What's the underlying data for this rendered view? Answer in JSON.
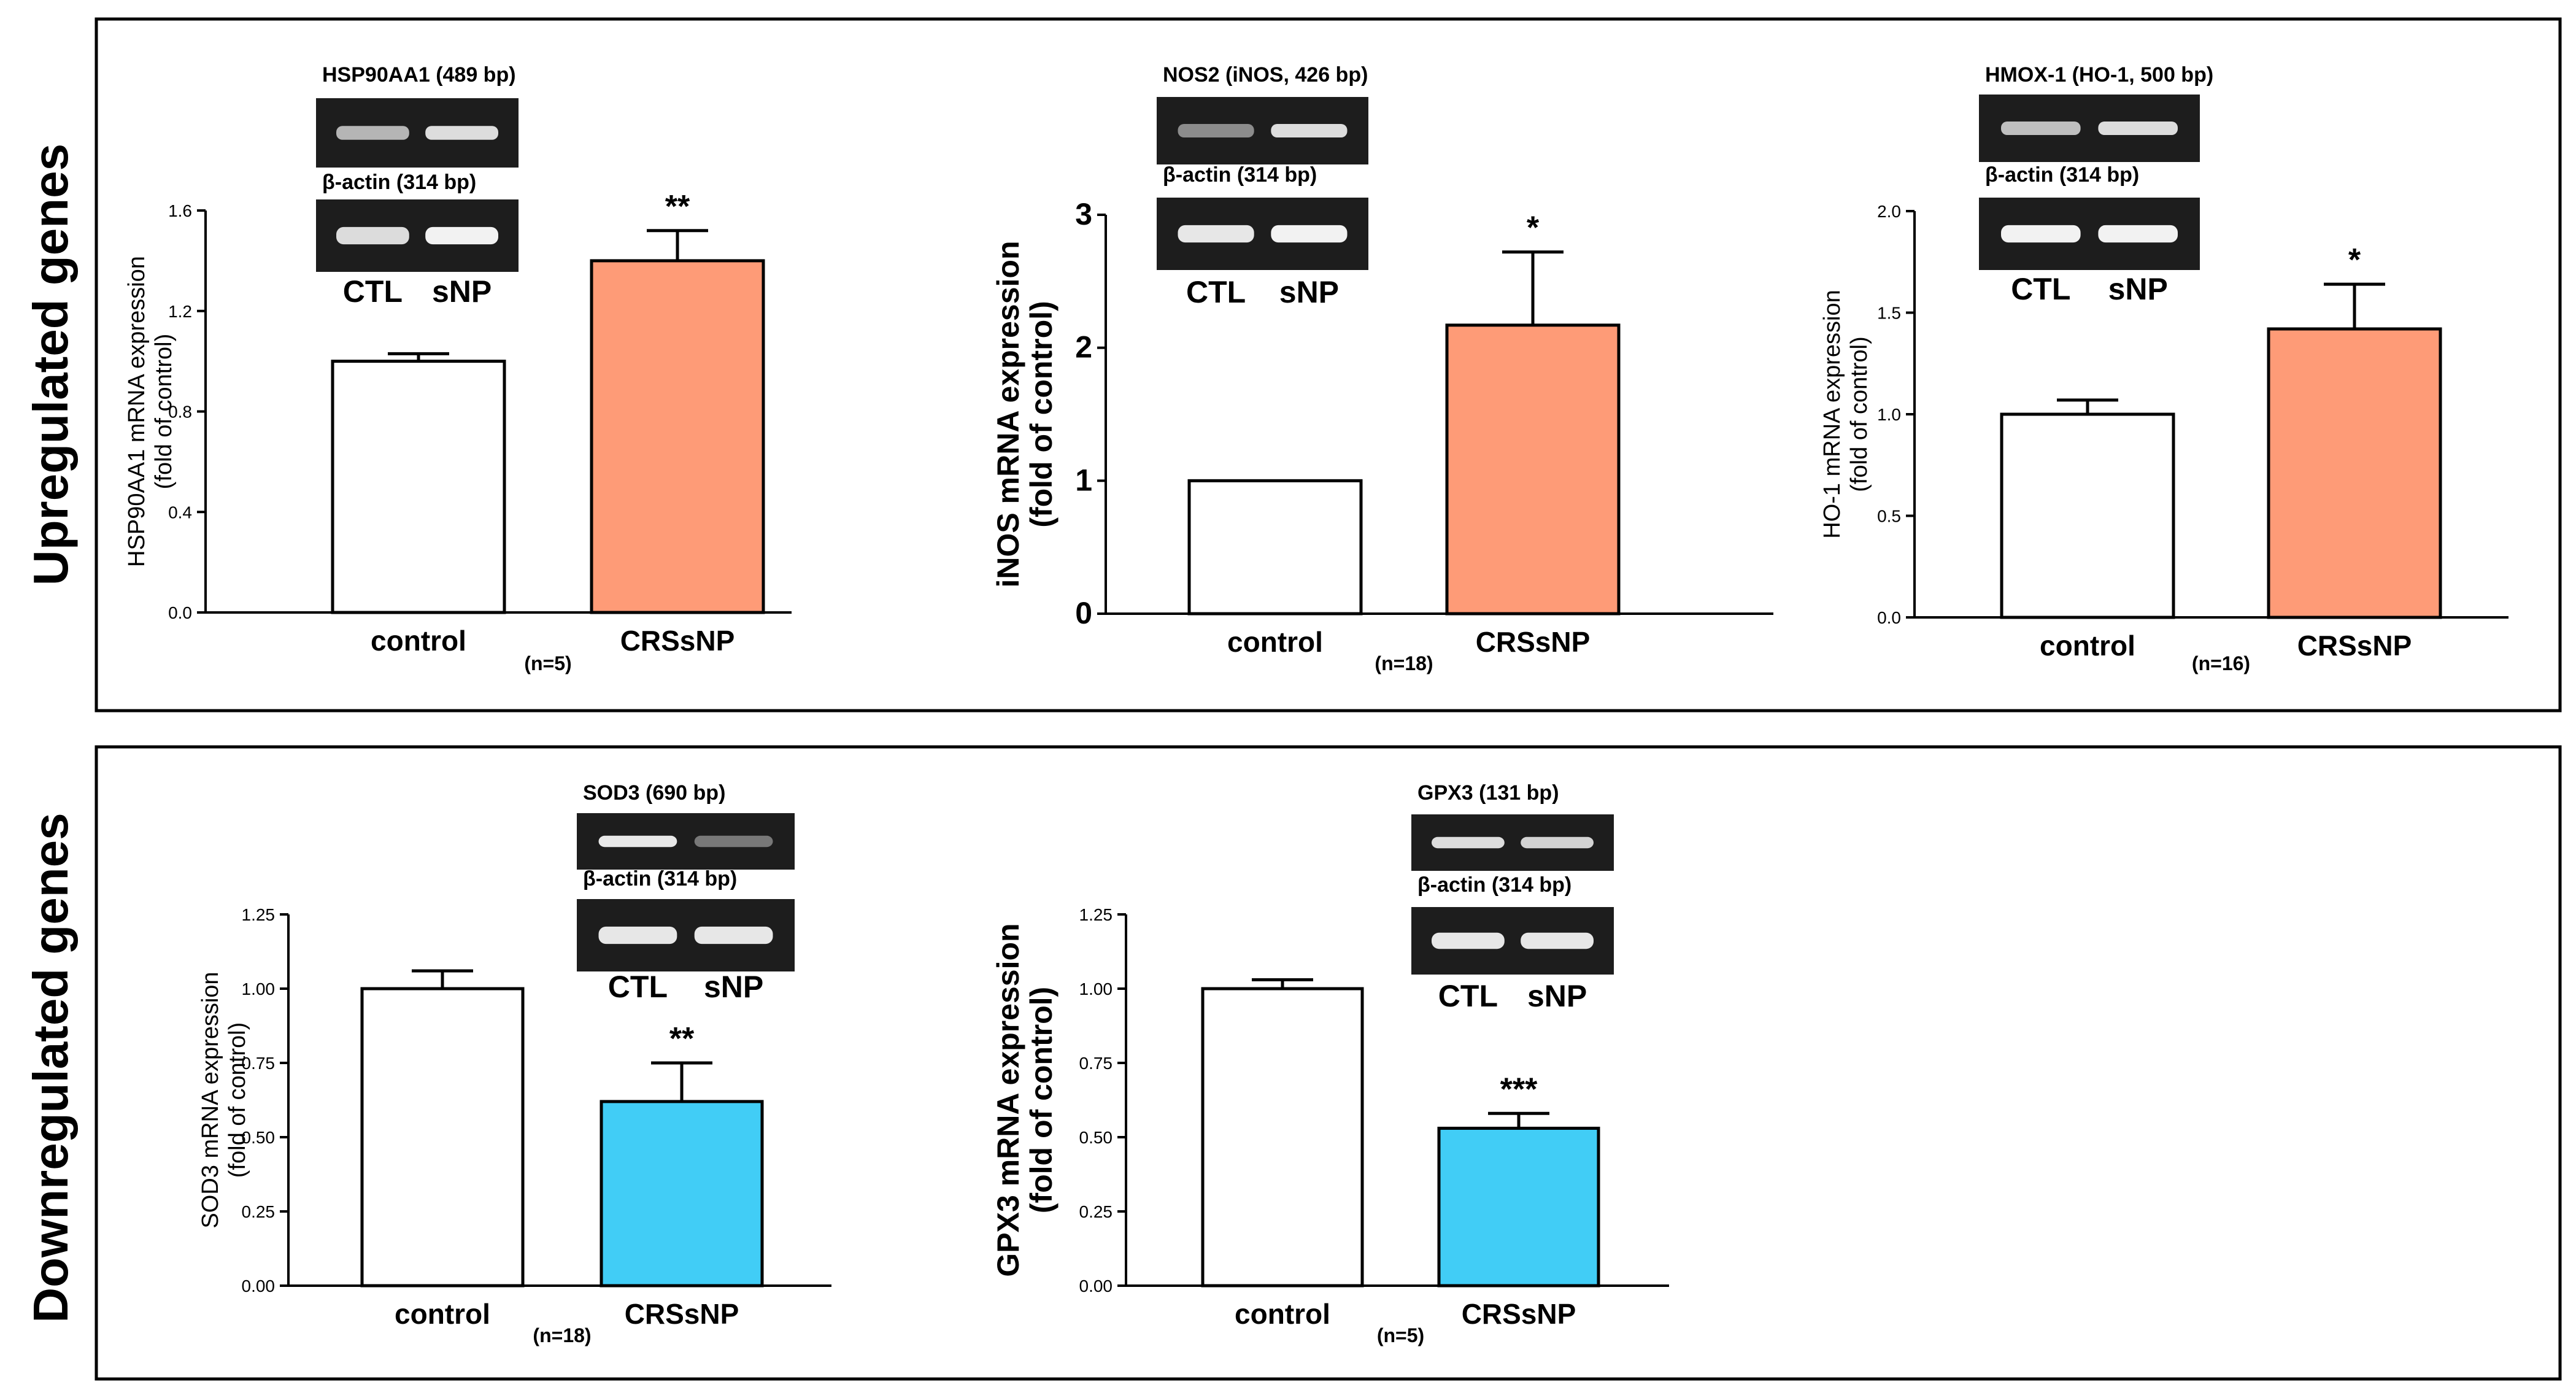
{
  "panels": [
    {
      "label": "Upregulated genes"
    },
    {
      "label": "Downregulated genes"
    }
  ],
  "colors": {
    "control": "#ffffff",
    "up": "#fe9b77",
    "down": "#41cdf6"
  },
  "chart_data": [
    {
      "type": "bar",
      "panel": "Upregulated genes",
      "ylabel": "HSP90AA1 mRNA expression\n(fold of control)",
      "categories": [
        "control",
        "CRSsNP"
      ],
      "values": [
        1.0,
        1.4
      ],
      "errors": [
        0.03,
        0.12
      ],
      "significance": [
        "",
        "**"
      ],
      "yticks": [
        "0.0",
        "0.4",
        "0.8",
        "1.2",
        "1.6"
      ],
      "ylim": [
        0,
        1.6
      ],
      "n": "(n=5)",
      "gel": {
        "target": "HSP90AA1 (489 bp)",
        "control": "β-actin (314 bp)",
        "lanes": [
          "CTL",
          "sNP"
        ]
      }
    },
    {
      "type": "bar",
      "panel": "Upregulated genes",
      "ylabel": "iNOS mRNA expression\n(fold of control)",
      "categories": [
        "control",
        "CRSsNP"
      ],
      "values": [
        1.0,
        2.17
      ],
      "errors": [
        0.0,
        0.55
      ],
      "significance": [
        "",
        "*"
      ],
      "yticks": [
        "0",
        "1",
        "2",
        "3"
      ],
      "ylim": [
        0,
        3
      ],
      "n": "(n=18)",
      "gel": {
        "target": "NOS2 (iNOS, 426 bp)",
        "control": "β-actin (314 bp)",
        "lanes": [
          "CTL",
          "sNP"
        ]
      }
    },
    {
      "type": "bar",
      "panel": "Upregulated genes",
      "ylabel": "HO-1 mRNA expression\n(fold of control)",
      "categories": [
        "control",
        "CRSsNP"
      ],
      "values": [
        1.0,
        1.42
      ],
      "errors": [
        0.07,
        0.22
      ],
      "significance": [
        "",
        "*"
      ],
      "yticks": [
        "0.0",
        "0.5",
        "1.0",
        "1.5",
        "2.0"
      ],
      "ylim": [
        0,
        2.0
      ],
      "n": "(n=16)",
      "gel": {
        "target": "HMOX-1 (HO-1, 500 bp)",
        "control": "β-actin (314 bp)",
        "lanes": [
          "CTL",
          "sNP"
        ]
      }
    },
    {
      "type": "bar",
      "panel": "Downregulated genes",
      "ylabel": "SOD3 mRNA expression\n(fold of control)",
      "categories": [
        "control",
        "CRSsNP"
      ],
      "values": [
        1.0,
        0.62
      ],
      "errors": [
        0.06,
        0.13
      ],
      "significance": [
        "",
        "**"
      ],
      "yticks": [
        "0.00",
        "0.25",
        "0.50",
        "0.75",
        "1.00",
        "1.25"
      ],
      "ylim": [
        0,
        1.25
      ],
      "n": "(n=18)",
      "gel": {
        "target": "SOD3 (690 bp)",
        "control": "β-actin (314 bp)",
        "lanes": [
          "CTL",
          "sNP"
        ]
      }
    },
    {
      "type": "bar",
      "panel": "Downregulated genes",
      "ylabel": "GPX3 mRNA expression\n(fold of control)",
      "categories": [
        "control",
        "CRSsNP"
      ],
      "values": [
        1.0,
        0.53
      ],
      "errors": [
        0.03,
        0.05
      ],
      "significance": [
        "",
        "***"
      ],
      "yticks": [
        "0.00",
        "0.25",
        "0.50",
        "0.75",
        "1.00",
        "1.25"
      ],
      "ylim": [
        0,
        1.25
      ],
      "n": "(n=5)",
      "gel": {
        "target": "GPX3 (131 bp)",
        "control": "β-actin (314 bp)",
        "lanes": [
          "CTL",
          "sNP"
        ]
      }
    }
  ]
}
